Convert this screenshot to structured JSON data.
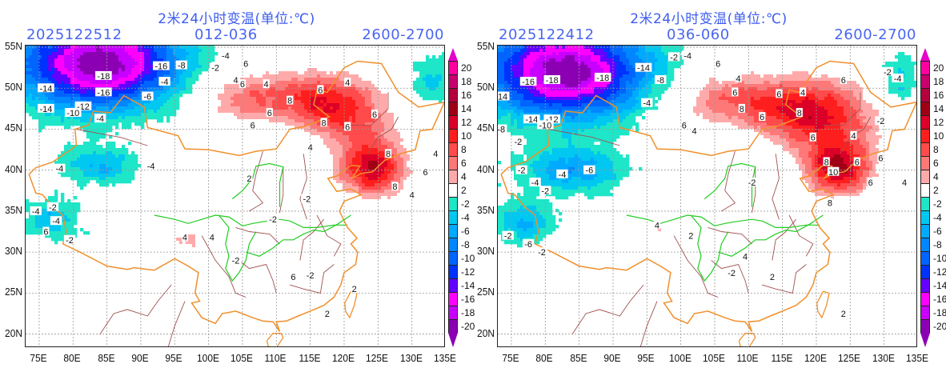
{
  "panels": [
    {
      "id": "left",
      "title": "2米24小时变温(单位:℃)",
      "init_time": "2025122512",
      "forecast_range": "012-036",
      "level": "2600-2700",
      "contour_labels": [
        {
          "text": "-18",
          "lon": 84.5,
          "lat": 51.5
        },
        {
          "text": "-16",
          "lon": 84.5,
          "lat": 49.5
        },
        {
          "text": "-14",
          "lon": 76.0,
          "lat": 50.0
        },
        {
          "text": "-14",
          "lon": 76.0,
          "lat": 47.5
        },
        {
          "text": "-12",
          "lon": 81.5,
          "lat": 47.8
        },
        {
          "text": "-10",
          "lon": 80.0,
          "lat": 47.0
        },
        {
          "text": "-16",
          "lon": 93.0,
          "lat": 52.7
        },
        {
          "text": "-8",
          "lon": 96.0,
          "lat": 52.8
        },
        {
          "text": "-4",
          "lon": 93.5,
          "lat": 50.8
        },
        {
          "text": "-2",
          "lon": 101.0,
          "lat": 52.5
        },
        {
          "text": "-4",
          "lon": 102.5,
          "lat": 54.0
        },
        {
          "text": "-6",
          "lon": 91.0,
          "lat": 49.0
        },
        {
          "text": "-4",
          "lon": 84.0,
          "lat": 46.3
        },
        {
          "text": "-4",
          "lon": 91.5,
          "lat": 40.5
        },
        {
          "text": "-4",
          "lon": 78.0,
          "lat": 40.2
        },
        {
          "text": "-4",
          "lon": 74.5,
          "lat": 35.0
        },
        {
          "text": "-4",
          "lon": 77.5,
          "lat": 33.8
        },
        {
          "text": "-2",
          "lon": 77.0,
          "lat": 35.5
        },
        {
          "text": "-2",
          "lon": 79.5,
          "lat": 31.5
        },
        {
          "text": "6",
          "lon": 76.0,
          "lat": 32.5
        },
        {
          "text": "-2",
          "lon": 104.0,
          "lat": 29.0
        },
        {
          "text": "-2",
          "lon": 115.0,
          "lat": 27.2
        },
        {
          "text": "6",
          "lon": 105.5,
          "lat": 53.0
        },
        {
          "text": "4",
          "lon": 104.0,
          "lat": 51.0
        },
        {
          "text": "6",
          "lon": 105.0,
          "lat": 50.5
        },
        {
          "text": "4",
          "lon": 108.5,
          "lat": 50.5
        },
        {
          "text": "6",
          "lon": 109.0,
          "lat": 47.0
        },
        {
          "text": "6",
          "lon": 106.5,
          "lat": 45.5
        },
        {
          "text": "8",
          "lon": 112.0,
          "lat": 48.5
        },
        {
          "text": "6",
          "lon": 116.5,
          "lat": 49.8
        },
        {
          "text": "8",
          "lon": 117.0,
          "lat": 45.8
        },
        {
          "text": "6",
          "lon": 120.5,
          "lat": 45.3
        },
        {
          "text": "4",
          "lon": 120.5,
          "lat": 50.7
        },
        {
          "text": "6",
          "lon": 124.5,
          "lat": 46.8
        },
        {
          "text": "4",
          "lon": 115.0,
          "lat": 42.8
        },
        {
          "text": "8",
          "lon": 126.5,
          "lat": 42.0
        },
        {
          "text": "4",
          "lon": 133.5,
          "lat": 42.0
        },
        {
          "text": "6",
          "lon": 132.0,
          "lat": 39.8
        },
        {
          "text": "8",
          "lon": 127.5,
          "lat": 38.0
        },
        {
          "text": "4",
          "lon": 130.0,
          "lat": 37.0
        },
        {
          "text": "2",
          "lon": 106.0,
          "lat": 39.0
        },
        {
          "text": "-2",
          "lon": 114.5,
          "lat": 36.5
        },
        {
          "text": "-2",
          "lon": 109.5,
          "lat": 34.0
        },
        {
          "text": "4",
          "lon": 96.5,
          "lat": 31.8
        },
        {
          "text": "4",
          "lon": 100.5,
          "lat": 31.8
        },
        {
          "text": "6",
          "lon": 112.5,
          "lat": 27.0
        },
        {
          "text": "2",
          "lon": 121.5,
          "lat": 25.5
        },
        {
          "text": "2",
          "lon": 117.5,
          "lat": 22.5
        }
      ]
    },
    {
      "id": "right",
      "title": "2米24小时变温(单位:℃)",
      "init_time": "2025122412",
      "forecast_range": "036-060",
      "level": "2600-2700",
      "contour_labels": [
        {
          "text": "-16",
          "lon": 77.5,
          "lat": 50.8
        },
        {
          "text": "-18",
          "lon": 81.0,
          "lat": 51.0
        },
        {
          "text": "-18",
          "lon": 88.5,
          "lat": 51.3
        },
        {
          "text": "-14",
          "lon": 73.5,
          "lat": 49.0
        },
        {
          "text": "-14",
          "lon": 78.0,
          "lat": 46.2
        },
        {
          "text": "-12",
          "lon": 81.0,
          "lat": 46.2
        },
        {
          "text": "-10",
          "lon": 80.0,
          "lat": 45.5
        },
        {
          "text": "-14",
          "lon": 94.5,
          "lat": 52.5
        },
        {
          "text": "-8",
          "lon": 97.0,
          "lat": 51.0
        },
        {
          "text": "-2",
          "lon": 99.0,
          "lat": 53.8
        },
        {
          "text": "-4",
          "lon": 101.0,
          "lat": 54.0
        },
        {
          "text": "-8",
          "lon": 73.5,
          "lat": 45.0
        },
        {
          "text": "-2",
          "lon": 76.0,
          "lat": 43.5
        },
        {
          "text": "-4",
          "lon": 95.0,
          "lat": 48.2
        },
        {
          "text": "-6",
          "lon": 86.5,
          "lat": 40.0
        },
        {
          "text": "-4",
          "lon": 82.5,
          "lat": 39.5
        },
        {
          "text": "-4",
          "lon": 78.5,
          "lat": 38.5
        },
        {
          "text": "-2",
          "lon": 80.0,
          "lat": 37.5
        },
        {
          "text": "-2",
          "lon": 76.5,
          "lat": 40.0
        },
        {
          "text": "-6",
          "lon": 77.5,
          "lat": 31.0
        },
        {
          "text": "-2",
          "lon": 79.5,
          "lat": 30.0
        },
        {
          "text": "-2",
          "lon": 74.5,
          "lat": 32.0
        },
        {
          "text": "6",
          "lon": 105.5,
          "lat": 53.0
        },
        {
          "text": "4",
          "lon": 108.5,
          "lat": 51.2
        },
        {
          "text": "6",
          "lon": 108.0,
          "lat": 49.5
        },
        {
          "text": "8",
          "lon": 109.0,
          "lat": 47.5
        },
        {
          "text": "6",
          "lon": 100.5,
          "lat": 45.5
        },
        {
          "text": "4",
          "lon": 102.0,
          "lat": 44.8
        },
        {
          "text": "6",
          "lon": 114.5,
          "lat": 49.3
        },
        {
          "text": "8",
          "lon": 117.5,
          "lat": 47.0
        },
        {
          "text": "6",
          "lon": 112.0,
          "lat": 46.5
        },
        {
          "text": "4",
          "lon": 118.0,
          "lat": 49.5
        },
        {
          "text": "6",
          "lon": 124.0,
          "lat": 51.0
        },
        {
          "text": "6",
          "lon": 119.5,
          "lat": 44.0
        },
        {
          "text": "4",
          "lon": 125.5,
          "lat": 44.2
        },
        {
          "text": "6",
          "lon": 126.0,
          "lat": 41.0
        },
        {
          "text": "10",
          "lon": 122.5,
          "lat": 39.8
        },
        {
          "text": "8",
          "lon": 121.5,
          "lat": 41.0
        },
        {
          "text": "6",
          "lon": 129.5,
          "lat": 41.5
        },
        {
          "text": "6",
          "lon": 128.0,
          "lat": 38.5
        },
        {
          "text": "4",
          "lon": 133.0,
          "lat": 38.5
        },
        {
          "text": "8",
          "lon": 122.0,
          "lat": 36.0
        },
        {
          "text": "-2",
          "lon": 130.5,
          "lat": 52.0
        },
        {
          "text": "-4",
          "lon": 132.0,
          "lat": 51.2
        },
        {
          "text": "-2",
          "lon": 129.5,
          "lat": 46.0
        },
        {
          "text": "-2",
          "lon": 110.5,
          "lat": 38.5
        },
        {
          "text": "4",
          "lon": 96.5,
          "lat": 33.3
        },
        {
          "text": "2",
          "lon": 101.5,
          "lat": 32.0
        },
        {
          "text": "4",
          "lon": 109.5,
          "lat": 29.5
        },
        {
          "text": "-2",
          "lon": 107.5,
          "lat": 27.5
        },
        {
          "text": "2",
          "lon": 113.5,
          "lat": 27.0
        },
        {
          "text": "2",
          "lon": 124.0,
          "lat": 22.5
        }
      ]
    }
  ],
  "axes": {
    "lat_ticks": [
      "55N",
      "50N",
      "45N",
      "40N",
      "35N",
      "30N",
      "25N",
      "20N"
    ],
    "lat_values": [
      55,
      50,
      45,
      40,
      35,
      30,
      25,
      20
    ],
    "lon_ticks": [
      "75E",
      "80E",
      "85E",
      "90E",
      "95E",
      "100E",
      "105E",
      "110E",
      "115E",
      "120E",
      "125E",
      "130E",
      "135E"
    ],
    "lon_values": [
      75,
      80,
      85,
      90,
      95,
      100,
      105,
      110,
      115,
      120,
      125,
      130,
      135
    ],
    "lon_range": [
      73,
      135
    ],
    "lat_range": [
      18.3,
      55.2
    ]
  },
  "colorbar": {
    "labels": [
      "20",
      "18",
      "16",
      "14",
      "12",
      "10",
      "8",
      "6",
      "4",
      "2",
      "-2",
      "-4",
      "-6",
      "-8",
      "-10",
      "-12",
      "-14",
      "-16",
      "-18",
      "-20"
    ],
    "colors": [
      "#ff00a0",
      "#c8006e",
      "#b4003c",
      "#a00014",
      "#dc0028",
      "#ff1e1e",
      "#ff4b4b",
      "#ff7878",
      "#ffaaaa",
      "#ffffff",
      "#1ee6c8",
      "#00c8f0",
      "#00aaff",
      "#0087ff",
      "#0064ff",
      "#0032ff",
      "#6400ff",
      "#ff00ff",
      "#c800ff",
      "#8c00b4"
    ],
    "top_arrow_color": "#e600c8",
    "bottom_arrow_color": "#8c00b4"
  },
  "colors": {
    "title_text": "#3d5cf0",
    "border_orange": "#f0902c",
    "border_green": "#22cc22",
    "province_line": "#a05050"
  }
}
